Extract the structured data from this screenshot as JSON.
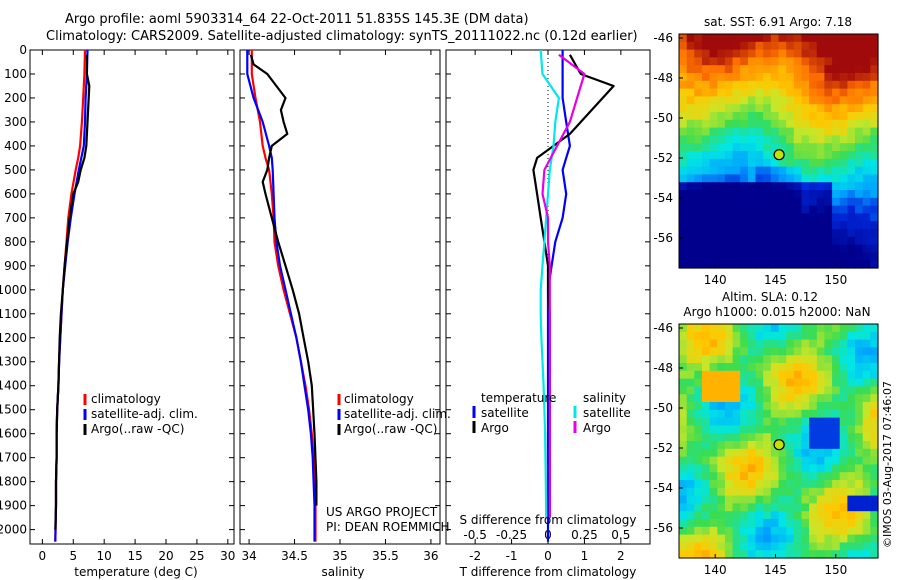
{
  "header": {
    "line1": "Argo profile: aoml 5903314_64 22-Oct-2011 51.835S 145.3E (DM data)",
    "line2": "Climatology: CARS2009. Satellite-adjusted climatology: synTS_20111022.nc (0.12d earlier)"
  },
  "side": {
    "sst_title": "sat. SST: 6.91 Argo: 7.18",
    "sla_title1": "Altim. SLA: 0.12",
    "sla_title2": "Argo h1000: 0.015 h2000: NaN",
    "stamp": "©IMOS 03-Aug-2017 07:46:07"
  },
  "colors": {
    "clim": "#ff0000",
    "sat": "#0000ff",
    "argo": "#000000",
    "sdiff_sat": "#00e8e8",
    "sdiff_argo": "#e600e6"
  },
  "chart_data": [
    {
      "type": "line",
      "xlabel": "temperature (deg C)",
      "ylabel": "",
      "xlim": [
        -2,
        31
      ],
      "ylim": [
        2060,
        0
      ],
      "xticks": [
        0,
        5,
        10,
        15,
        20,
        25,
        30
      ],
      "xticklabels": [
        "0",
        "5",
        "10",
        "15",
        "20",
        "25",
        "30"
      ],
      "yticks": [
        0,
        100,
        200,
        300,
        400,
        500,
        600,
        700,
        800,
        900,
        1000,
        1100,
        1200,
        1300,
        1400,
        1500,
        1600,
        1700,
        1800,
        1900,
        2000
      ],
      "legend": [
        "climatology",
        "satellite-adj. clim.",
        "Argo(..raw -QC)"
      ],
      "legend_position": "bottom-right",
      "series": [
        {
          "name": "climatology",
          "color_key": "clim",
          "x": [
            6.9,
            6.8,
            6.6,
            6.4,
            6.1,
            5.8,
            5.4,
            4.7,
            4.2,
            3.9,
            3.6,
            3.3,
            3.1,
            2.9,
            2.7,
            2.6,
            2.4,
            2.3,
            2.3,
            2.2,
            2.2,
            2.1
          ],
          "y": [
            0,
            100,
            200,
            300,
            400,
            450,
            500,
            600,
            700,
            800,
            900,
            1000,
            1100,
            1200,
            1300,
            1400,
            1500,
            1600,
            1700,
            1800,
            1900,
            2050
          ]
        },
        {
          "name": "satellite-adj. clim.",
          "color_key": "sat",
          "x": [
            7.3,
            7.2,
            7.0,
            6.9,
            6.7,
            6.3,
            5.9,
            5.2,
            4.6,
            4.1,
            3.7,
            3.3,
            3.1,
            2.9,
            2.7,
            2.6,
            2.4,
            2.3,
            2.3,
            2.2,
            2.2,
            2.1
          ],
          "y": [
            0,
            100,
            200,
            300,
            400,
            450,
            500,
            600,
            700,
            800,
            900,
            1000,
            1100,
            1200,
            1300,
            1400,
            1500,
            1600,
            1700,
            1800,
            1900,
            2050
          ]
        },
        {
          "name": "Argo(..raw -QC)",
          "color_key": "argo",
          "x": [
            7.2,
            7.2,
            7.6,
            7.5,
            7.3,
            7.1,
            6.8,
            6.2,
            5.8,
            5.0,
            4.4,
            4.0,
            3.6,
            3.3,
            3.0,
            2.8,
            2.6,
            2.4,
            2.3,
            2.3,
            2.2,
            2.2,
            2.1
          ],
          "y": [
            20,
            100,
            150,
            200,
            300,
            400,
            450,
            500,
            550,
            600,
            700,
            800,
            900,
            1000,
            1100,
            1200,
            1400,
            1500,
            1600,
            1700,
            1800,
            1900,
            2000
          ]
        }
      ]
    },
    {
      "type": "line",
      "xlabel": "salinity",
      "ylabel": "",
      "xlim": [
        33.9,
        36.1
      ],
      "ylim": [
        2060,
        0
      ],
      "xticks": [
        34,
        34.5,
        35,
        35.5,
        36
      ],
      "xticklabels": [
        "34",
        "34.5",
        "35",
        "35.5",
        "36"
      ],
      "legend": [
        "climatology",
        "satellite-adj. clim.",
        "Argo(..raw -QC)"
      ],
      "legend_position": "bottom-right",
      "annotation": [
        "US ARGO PROJECT",
        "PI: DEAN ROEMMICH"
      ],
      "series": [
        {
          "name": "climatology",
          "color_key": "clim",
          "x": [
            34.03,
            34.03,
            34.07,
            34.12,
            34.15,
            34.18,
            34.22,
            34.25,
            34.27,
            34.28,
            34.32,
            34.38,
            34.45,
            34.52,
            34.57,
            34.62,
            34.66,
            34.69,
            34.71,
            34.72,
            34.73,
            34.73
          ],
          "y": [
            0,
            100,
            200,
            300,
            400,
            450,
            500,
            600,
            700,
            800,
            900,
            1000,
            1100,
            1200,
            1300,
            1400,
            1500,
            1600,
            1700,
            1800,
            1900,
            2050
          ]
        },
        {
          "name": "satellite-adj. clim.",
          "color_key": "sat",
          "x": [
            33.98,
            33.98,
            34.05,
            34.15,
            34.22,
            34.25,
            34.26,
            34.27,
            34.28,
            34.3,
            34.34,
            34.4,
            34.46,
            34.52,
            34.57,
            34.61,
            34.65,
            34.68,
            34.7,
            34.71,
            34.72,
            34.72
          ],
          "y": [
            0,
            100,
            200,
            300,
            400,
            450,
            500,
            600,
            700,
            800,
            900,
            1000,
            1100,
            1200,
            1300,
            1400,
            1500,
            1600,
            1700,
            1800,
            1900,
            2050
          ]
        },
        {
          "name": "Argo(..raw -QC)",
          "color_key": "argo",
          "x": [
            34.02,
            34.05,
            34.2,
            34.3,
            34.4,
            34.35,
            34.38,
            34.42,
            34.25,
            34.22,
            34.2,
            34.15,
            34.18,
            34.25,
            34.32,
            34.4,
            34.48,
            34.55,
            34.6,
            34.65,
            34.69,
            34.72,
            34.74,
            34.74
          ],
          "y": [
            20,
            60,
            100,
            150,
            200,
            250,
            300,
            350,
            400,
            450,
            500,
            550,
            600,
            700,
            800,
            900,
            1000,
            1100,
            1200,
            1300,
            1400,
            1600,
            1800,
            1900
          ]
        }
      ]
    },
    {
      "type": "line",
      "xlabel": "T difference from climatology",
      "xlabel_top": "S difference from climatology",
      "ylabel": "",
      "xlim": [
        -2.8,
        2.8
      ],
      "ylim": [
        2060,
        0
      ],
      "xticks": [
        -2,
        -1,
        0,
        1,
        2
      ],
      "xticklabels": [
        "-2",
        "-1",
        "0",
        "1",
        "2"
      ],
      "sticks": [
        -0.5,
        -0.25,
        0,
        0.25,
        0.5
      ],
      "sticklabels": [
        "-0.5",
        "-0.25",
        "0",
        "0.25",
        "0.5"
      ],
      "legend_temperature": [
        "temperature",
        "satellite",
        "Argo"
      ],
      "legend_salinity": [
        "salinity",
        "satellite",
        "Argo"
      ],
      "legend_position": "bottom-right",
      "series": [
        {
          "name": "satellite",
          "group": "temperature",
          "color_key": "sat",
          "x": [
            0.4,
            0.4,
            0.4,
            0.5,
            0.6,
            0.5,
            0.4,
            0.5,
            0.4,
            0.2,
            0.1,
            0.0,
            0.0,
            0.0,
            0.0,
            0.0,
            0.0,
            0.0,
            0.0
          ],
          "y": [
            0,
            100,
            200,
            300,
            400,
            450,
            500,
            600,
            700,
            800,
            900,
            1000,
            1100,
            1200,
            1300,
            1400,
            1500,
            1700,
            2050
          ]
        },
        {
          "name": "Argo",
          "group": "temperature",
          "color_key": "argo",
          "x": [
            0.6,
            0.9,
            1.8,
            1.2,
            0.6,
            -0.3,
            -0.4,
            -0.3,
            -0.2,
            -0.1,
            0.0,
            0.0,
            0.05,
            0.05,
            0.05,
            0.05,
            0.05,
            0.05,
            0.05
          ],
          "y": [
            20,
            100,
            150,
            250,
            350,
            450,
            500,
            600,
            700,
            800,
            900,
            1000,
            1100,
            1200,
            1300,
            1400,
            1500,
            1700,
            1950
          ]
        },
        {
          "name": "satellite",
          "group": "salinity",
          "color_key": "sdiff_sat",
          "x": [
            -0.2,
            -0.15,
            0.3,
            0.2,
            0.15,
            0.05,
            0.0,
            -0.05,
            -0.1,
            -0.15,
            -0.2,
            -0.2,
            -0.18,
            -0.15,
            -0.12,
            -0.1,
            -0.08,
            -0.06,
            -0.05
          ],
          "y": [
            0,
            100,
            200,
            300,
            400,
            500,
            600,
            700,
            800,
            900,
            1000,
            1100,
            1200,
            1300,
            1400,
            1500,
            1600,
            1800,
            1950
          ]
        },
        {
          "name": "Argo",
          "group": "salinity",
          "color_key": "sdiff_argo",
          "x": [
            0.3,
            1.0,
            0.8,
            0.6,
            0.25,
            -0.1,
            -0.15,
            0.0,
            0.0,
            0.05,
            0.05,
            0.05,
            0.05,
            0.05,
            0.05,
            0.05
          ],
          "y": [
            20,
            100,
            200,
            300,
            400,
            500,
            600,
            700,
            800,
            900,
            1000,
            1200,
            1400,
            1600,
            1800,
            1950
          ]
        }
      ]
    },
    {
      "type": "heatmap",
      "title": "sat. SST: 6.91 Argo: 7.18",
      "xlim": [
        137,
        153.5
      ],
      "ylim": [
        -57.5,
        -45.8
      ],
      "xticks": [
        140,
        145,
        150
      ],
      "xticklabels": [
        "140",
        "145",
        "150"
      ],
      "yticks": [
        -46,
        -48,
        -50,
        -52,
        -54,
        -56
      ],
      "yticklabels": [
        "-46",
        "-48",
        "-50",
        "-52",
        "-54",
        "-56"
      ],
      "marker": {
        "lon": 145.3,
        "lat": -51.835
      }
    },
    {
      "type": "heatmap",
      "title": "Altim. SLA: 0.12 / Argo h1000: 0.015 h2000: NaN",
      "xlim": [
        137,
        153.5
      ],
      "ylim": [
        -57.5,
        -45.8
      ],
      "xticks": [
        140,
        145,
        150
      ],
      "xticklabels": [
        "140",
        "145",
        "150"
      ],
      "yticks": [
        -46,
        -48,
        -50,
        -52,
        -54,
        -56
      ],
      "yticklabels": [
        "-46",
        "-48",
        "-50",
        "-52",
        "-54",
        "-56"
      ],
      "marker": {
        "lon": 145.3,
        "lat": -51.835
      }
    }
  ]
}
